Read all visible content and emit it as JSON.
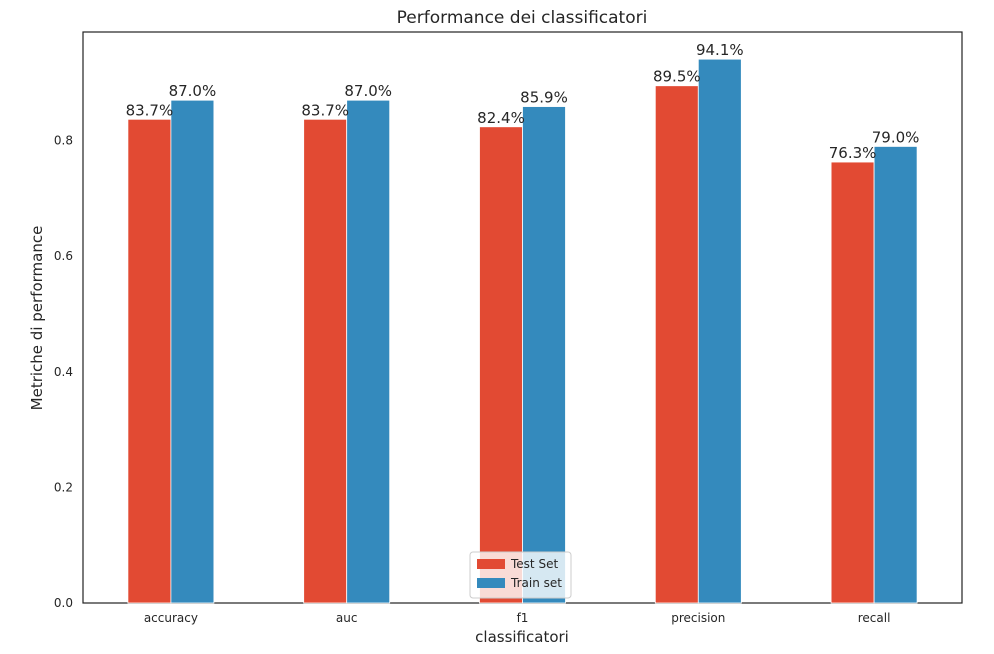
{
  "chart_data": {
    "type": "bar",
    "title": "Performance dei classificatori",
    "xlabel": "classificatori",
    "ylabel": "Metriche di performance",
    "categories": [
      "accuracy",
      "auc",
      "f1",
      "precision",
      "recall"
    ],
    "series": [
      {
        "name": "Test Set",
        "color": "#e24a33",
        "values": [
          0.837,
          0.837,
          0.824,
          0.895,
          0.763
        ],
        "labels": [
          "83.7%",
          "83.7%",
          "82.4%",
          "89.5%",
          "76.3%"
        ]
      },
      {
        "name": "Train set",
        "color": "#348abd",
        "values": [
          0.87,
          0.87,
          0.859,
          0.941,
          0.79
        ],
        "labels": [
          "87.0%",
          "87.0%",
          "85.9%",
          "94.1%",
          "79.0%"
        ]
      }
    ],
    "yticks": [
      0.0,
      0.2,
      0.4,
      0.6,
      0.8
    ],
    "ytick_labels": [
      "0.0",
      "0.2",
      "0.4",
      "0.6",
      "0.8"
    ],
    "ylim": [
      0,
      0.988
    ],
    "grid": false,
    "legend_position": "bottom-center"
  }
}
